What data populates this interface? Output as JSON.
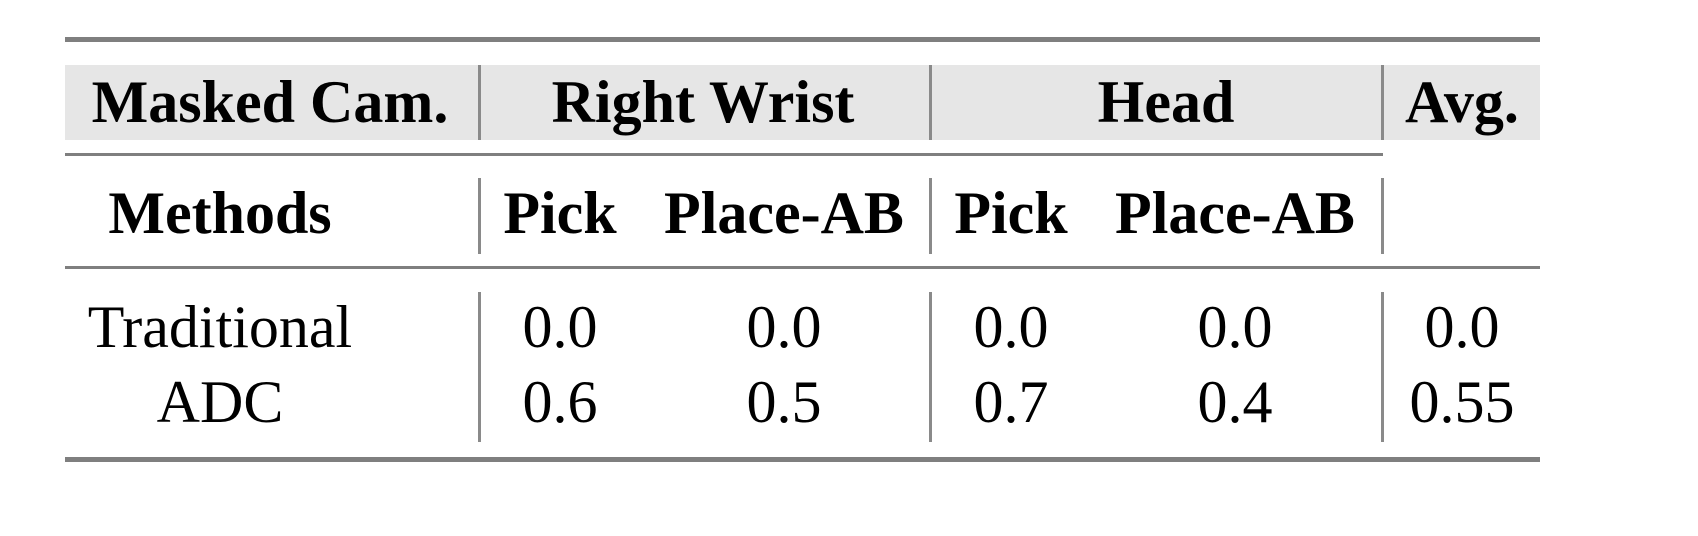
{
  "table": {
    "header_row1": {
      "masked_cam": "Masked Cam.",
      "groups": [
        "Right Wrist",
        "Head"
      ],
      "avg": "Avg."
    },
    "header_row2": {
      "methods": "Methods",
      "subcolumns": [
        "Pick",
        "Place-AB",
        "Pick",
        "Place-AB"
      ]
    },
    "rows": [
      {
        "method": "Traditional",
        "values": [
          "0.0",
          "0.0",
          "0.0",
          "0.0"
        ],
        "avg": "0.0"
      },
      {
        "method": "ADC",
        "values": [
          "0.6",
          "0.5",
          "0.7",
          "0.4"
        ],
        "avg": "0.55"
      }
    ],
    "colors": {
      "header_bg": "#e6e6e6",
      "rule": "#7f7f7f"
    }
  }
}
